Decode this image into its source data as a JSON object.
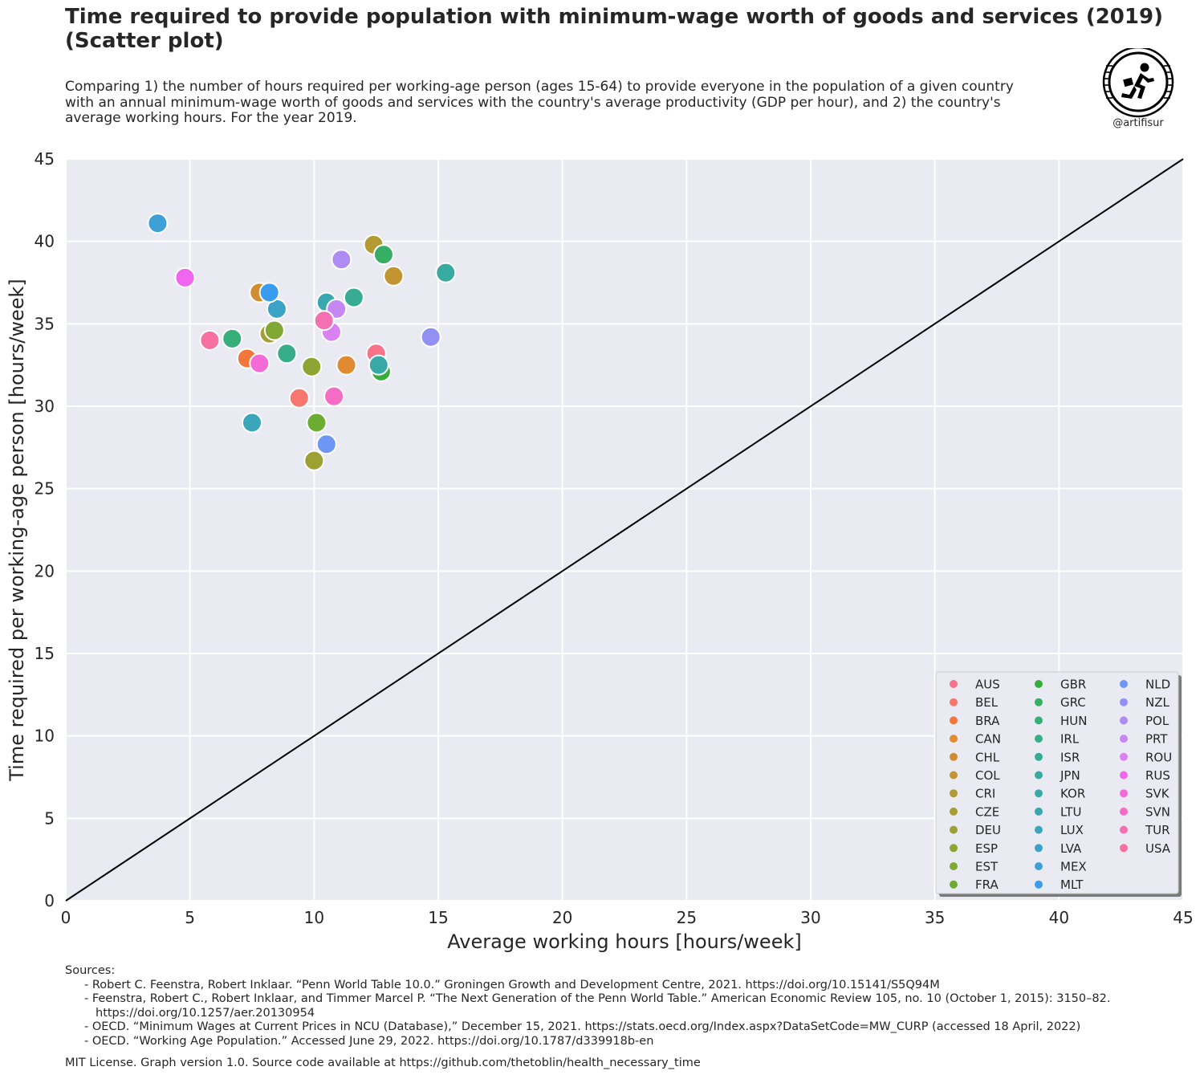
{
  "header": {
    "title_lines": [
      "Time required to provide population with minimum-wage worth of goods and services (2019)",
      "(Scatter plot)"
    ],
    "subtitle_lines": [
      "Comparing 1) the number of hours required per working-age person (ages 15-64) to provide everyone in the population of a given country",
      "with an annual minimum-wage worth of goods and services with the country's average productivity (GDP per hour), and 2) the country's",
      "average working hours. For the year 2019."
    ],
    "logo_handle": "@artifisur"
  },
  "footer": {
    "sources_heading": "Sources:",
    "sources": [
      "- Robert C. Feenstra, Robert Inklaar. “Penn World Table 10.0.” Groningen Growth and Development Centre, 2021. https://doi.org/10.15141/S5Q94M",
      "- Feenstra, Robert C., Robert Inklaar, and Timmer Marcel P. “The Next Generation of the Penn World Table.” American Economic Review 105, no. 10 (October 1, 2015): 3150–82.",
      "https://doi.org/10.1257/aer.20130954",
      "- OECD. “Minimum Wages at Current Prices in NCU (Database),” December 15, 2021. https://stats.oecd.org/Index.aspx?DataSetCode=MW_CURP (accessed 18 April, 2022)",
      "- OECD. “Working Age Population.” Accessed June 29, 2022. https://doi.org/10.1787/d339918b-en"
    ],
    "license": "MIT License. Graph version 1.0. Source code available at https://github.com/thetoblin/health_necessary_time"
  },
  "chart_data": {
    "type": "scatter",
    "title": "",
    "xlabel": "Average working hours [hours/week]",
    "ylabel": "Time required per working-age person [hours/week]",
    "xlim": [
      0,
      45
    ],
    "ylim": [
      0,
      45
    ],
    "xticks": [
      0,
      5,
      10,
      15,
      20,
      25,
      30,
      35,
      40,
      45
    ],
    "yticks": [
      0,
      5,
      10,
      15,
      20,
      25,
      30,
      35,
      40,
      45
    ],
    "grid": true,
    "background": "#eaeaf2",
    "reference_line": {
      "from": [
        0,
        0
      ],
      "to": [
        45,
        45
      ],
      "color": "#000000"
    },
    "legend_position": "lower right",
    "legend_columns": 3,
    "series": [
      {
        "name": "AUS",
        "color": "#f77189",
        "x": 12.5,
        "y": 33.2
      },
      {
        "name": "BEL",
        "color": "#f7766d",
        "x": 9.4,
        "y": 30.5
      },
      {
        "name": "BRA",
        "color": "#f3763b",
        "x": 7.3,
        "y": 32.9
      },
      {
        "name": "CAN",
        "color": "#e08b32",
        "x": 11.3,
        "y": 32.5
      },
      {
        "name": "CHL",
        "color": "#d08e32",
        "x": 7.8,
        "y": 36.9
      },
      {
        "name": "COL",
        "color": "#c29532",
        "x": 13.2,
        "y": 37.9
      },
      {
        "name": "CRI",
        "color": "#b49a32",
        "x": 12.4,
        "y": 39.8
      },
      {
        "name": "CZE",
        "color": "#a69e32",
        "x": 8.2,
        "y": 34.4
      },
      {
        "name": "DEU",
        "color": "#9da132",
        "x": 10.0,
        "y": 26.7
      },
      {
        "name": "ESP",
        "color": "#8fa432",
        "x": 9.9,
        "y": 32.4
      },
      {
        "name": "EST",
        "color": "#80a832",
        "x": 8.4,
        "y": 34.6
      },
      {
        "name": "FRA",
        "color": "#6cac32",
        "x": 10.1,
        "y": 29.0
      },
      {
        "name": "GBR",
        "color": "#36ad3a",
        "x": 12.7,
        "y": 32.1
      },
      {
        "name": "GRC",
        "color": "#36ae64",
        "x": 12.8,
        "y": 39.2
      },
      {
        "name": "HUN",
        "color": "#37af7a",
        "x": 6.7,
        "y": 34.1
      },
      {
        "name": "IRL",
        "color": "#37ad88",
        "x": 8.9,
        "y": 33.2
      },
      {
        "name": "ISR",
        "color": "#37ab94",
        "x": 11.6,
        "y": 36.6
      },
      {
        "name": "JPN",
        "color": "#38aa9f",
        "x": 15.3,
        "y": 38.1
      },
      {
        "name": "KOR",
        "color": "#39a9a7",
        "x": 12.6,
        "y": 32.5
      },
      {
        "name": "LTU",
        "color": "#3aa7b0",
        "x": 10.5,
        "y": 36.3
      },
      {
        "name": "LUX",
        "color": "#3ba5ba",
        "x": 7.5,
        "y": 29.0
      },
      {
        "name": "LVA",
        "color": "#3ca3c6",
        "x": 8.5,
        "y": 35.9
      },
      {
        "name": "MEX",
        "color": "#3ea0d4",
        "x": 3.7,
        "y": 41.1
      },
      {
        "name": "MLT",
        "color": "#3a9cec",
        "x": 8.2,
        "y": 36.9
      },
      {
        "name": "NLD",
        "color": "#6e96f4",
        "x": 10.5,
        "y": 27.7
      },
      {
        "name": "NZL",
        "color": "#9191f4",
        "x": 14.7,
        "y": 34.2
      },
      {
        "name": "POL",
        "color": "#ad8cf4",
        "x": 11.1,
        "y": 38.9
      },
      {
        "name": "PRT",
        "color": "#c487f4",
        "x": 10.9,
        "y": 35.9
      },
      {
        "name": "ROU",
        "color": "#d980f3",
        "x": 10.7,
        "y": 34.5
      },
      {
        "name": "RUS",
        "color": "#f066ee",
        "x": 4.8,
        "y": 37.8
      },
      {
        "name": "SVK",
        "color": "#f46bd8",
        "x": 7.8,
        "y": 32.6
      },
      {
        "name": "SVN",
        "color": "#f56cc4",
        "x": 10.8,
        "y": 30.6
      },
      {
        "name": "TUR",
        "color": "#f56fb3",
        "x": 10.4,
        "y": 35.2
      },
      {
        "name": "USA",
        "color": "#f7709f",
        "x": 5.8,
        "y": 34.0
      }
    ]
  }
}
